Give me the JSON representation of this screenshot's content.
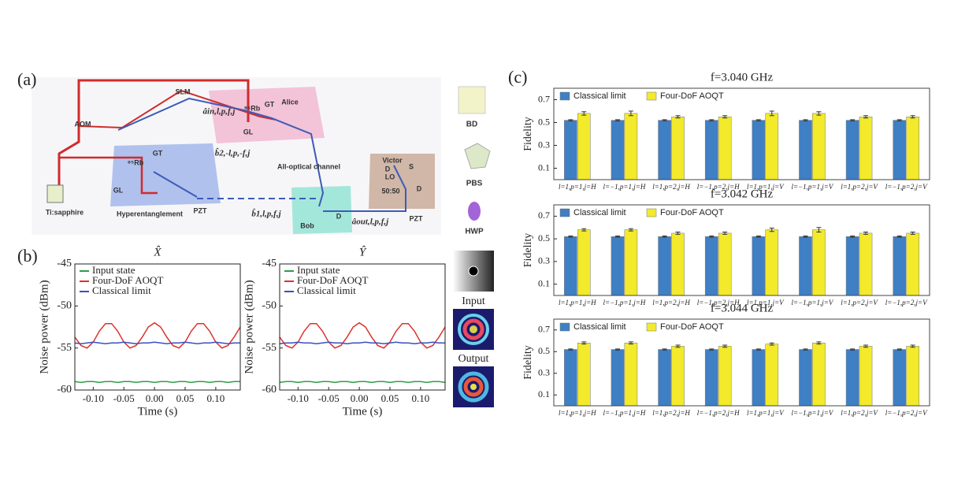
{
  "diagram": {
    "panel_label": "(a)",
    "labels": [
      "SLM",
      "AOM",
      "Alice",
      "GT",
      "⁸⁵Rb",
      "GL",
      "GT",
      "⁸⁵Rb",
      "GL",
      "Ti:sapphire",
      "Hyperentanglement",
      "PZT",
      "All-optical channel",
      "Bob",
      "Victor",
      "LO",
      "50:50",
      "D",
      "D",
      "D",
      "S",
      "PZT"
    ],
    "modes": [
      "âin,l,p,f,j",
      "b̂2,-l,p,-f,j",
      "b̂1,l,p,f,j",
      "âout,l,p,f,j"
    ],
    "legend": [
      "BD",
      "PBS",
      "HWP"
    ]
  },
  "panel_b": {
    "panel_label": "(b)",
    "images": [
      "Input",
      "Output"
    ]
  },
  "panel_c": {
    "panel_label": "(c)"
  },
  "chart_data": [
    {
      "type": "line",
      "title": "X̂",
      "xlabel": "Time (s)",
      "ylabel": "Noise power (dBm)",
      "x": [
        -0.13,
        -0.12,
        -0.11,
        -0.1,
        -0.09,
        -0.08,
        -0.07,
        -0.06,
        -0.05,
        -0.04,
        -0.03,
        -0.02,
        -0.01,
        0,
        0.01,
        0.02,
        0.03,
        0.04,
        0.05,
        0.06,
        0.07,
        0.08,
        0.09,
        0.1,
        0.11,
        0.12,
        0.13,
        0.14
      ],
      "xlim": [
        -0.13,
        0.14
      ],
      "ylim": [
        -60,
        -45
      ],
      "xticks": [
        {
          "value": -0.1,
          "label": "-0.10"
        },
        {
          "value": -0.05,
          "label": "-0.05"
        },
        {
          "value": 0,
          "label": "0.00"
        },
        {
          "value": 0.05,
          "label": "0.05"
        },
        {
          "value": 0.1,
          "label": "0.10"
        }
      ],
      "yticks": [
        -45,
        -50,
        -55,
        -60
      ],
      "series": [
        {
          "name": "Input state",
          "color": "#2e9e44",
          "values": [
            -59.0,
            -59.1,
            -59.0,
            -59.0,
            -59.1,
            -59.0,
            -59.0,
            -59.1,
            -59.0,
            -59.0,
            -59.1,
            -59.0,
            -59.0,
            -59.1,
            -59.0,
            -59.0,
            -59.1,
            -59.0,
            -59.0,
            -59.1,
            -59.0,
            -59.0,
            -59.1,
            -59.0,
            -59.0,
            -59.1,
            -59.0,
            -59.0
          ]
        },
        {
          "name": "Four-DoF AOQT",
          "color": "#d9342b",
          "values": [
            -53.7,
            -54.7,
            -55.0,
            -54.3,
            -53.0,
            -52.1,
            -52.1,
            -53.0,
            -54.3,
            -55.0,
            -54.7,
            -53.7,
            -52.5,
            -52.0,
            -52.5,
            -53.7,
            -54.7,
            -55.0,
            -54.3,
            -53.0,
            -52.1,
            -52.1,
            -53.0,
            -54.3,
            -55.0,
            -54.7,
            -53.7,
            -52.5
          ]
        },
        {
          "name": "Classical limit",
          "color": "#3b4fbf",
          "values": [
            -54.4,
            -54.5,
            -54.4,
            -54.3,
            -54.4,
            -54.5,
            -54.4,
            -54.4,
            -54.3,
            -54.4,
            -54.5,
            -54.4,
            -54.4,
            -54.3,
            -54.4,
            -54.5,
            -54.4,
            -54.4,
            -54.3,
            -54.4,
            -54.5,
            -54.4,
            -54.4,
            -54.3,
            -54.4,
            -54.5,
            -54.4,
            -54.4
          ]
        }
      ]
    },
    {
      "type": "line",
      "title": "Ŷ",
      "xlabel": "Time (s)",
      "ylabel": "Noise power (dBm)",
      "x": [
        -0.13,
        -0.12,
        -0.11,
        -0.1,
        -0.09,
        -0.08,
        -0.07,
        -0.06,
        -0.05,
        -0.04,
        -0.03,
        -0.02,
        -0.01,
        0,
        0.01,
        0.02,
        0.03,
        0.04,
        0.05,
        0.06,
        0.07,
        0.08,
        0.09,
        0.1,
        0.11,
        0.12,
        0.13,
        0.14
      ],
      "xlim": [
        -0.13,
        0.14
      ],
      "ylim": [
        -60,
        -45
      ],
      "xticks": [
        {
          "value": -0.1,
          "label": "-0.10"
        },
        {
          "value": -0.05,
          "label": "-0.05"
        },
        {
          "value": 0,
          "label": "0.00"
        },
        {
          "value": 0.05,
          "label": "0.05"
        },
        {
          "value": 0.1,
          "label": "0.10"
        }
      ],
      "yticks": [
        -45,
        -50,
        -55,
        -60
      ],
      "series": [
        {
          "name": "Input state",
          "color": "#2e9e44",
          "values": [
            -59.1,
            -59.0,
            -59.0,
            -59.1,
            -59.0,
            -59.0,
            -59.1,
            -59.0,
            -59.0,
            -59.1,
            -59.0,
            -59.0,
            -59.1,
            -59.0,
            -59.0,
            -59.1,
            -59.0,
            -59.0,
            -59.1,
            -59.0,
            -59.0,
            -59.1,
            -59.0,
            -59.0,
            -59.1,
            -59.0,
            -59.0,
            -59.1
          ]
        },
        {
          "name": "Four-DoF AOQT",
          "color": "#d9342b",
          "values": [
            -53.7,
            -54.7,
            -55.0,
            -54.3,
            -53.0,
            -52.1,
            -52.1,
            -53.0,
            -54.3,
            -55.0,
            -54.7,
            -53.7,
            -52.5,
            -52.0,
            -52.5,
            -53.7,
            -54.7,
            -55.0,
            -54.3,
            -53.0,
            -52.1,
            -52.1,
            -53.0,
            -54.3,
            -55.0,
            -54.7,
            -53.7,
            -52.5
          ]
        },
        {
          "name": "Classical limit",
          "color": "#3b4fbf",
          "values": [
            -54.5,
            -54.4,
            -54.4,
            -54.3,
            -54.4,
            -54.4,
            -54.5,
            -54.4,
            -54.3,
            -54.4,
            -54.4,
            -54.5,
            -54.4,
            -54.4,
            -54.3,
            -54.4,
            -54.4,
            -54.5,
            -54.4,
            -54.3,
            -54.4,
            -54.4,
            -54.5,
            -54.4,
            -54.4,
            -54.3,
            -54.4,
            -54.4
          ]
        }
      ]
    },
    {
      "type": "bar",
      "title": "f=3.040 GHz",
      "ylabel": "Fidelity",
      "categories": [
        "l=1,p=1,j=H",
        "l=−1,p=1,j=H",
        "l=1,p=2,j=H",
        "l=−1,p=2,j=H",
        "l=1,p=1,j=V",
        "l=−1,p=1,j=V",
        "l=1,p=2,j=V",
        "l=−1,p=2,j=V"
      ],
      "ylim": [
        0,
        0.8
      ],
      "yticks": [
        0.1,
        0.3,
        0.5,
        0.7
      ],
      "series": [
        {
          "name": "Classical limit",
          "color": "#3f7fc4",
          "values": [
            0.52,
            0.52,
            0.52,
            0.52,
            0.52,
            0.52,
            0.52,
            0.52
          ],
          "errors": [
            0.005,
            0.005,
            0.005,
            0.005,
            0.005,
            0.005,
            0.005,
            0.005
          ]
        },
        {
          "name": "Four-DoF AOQT",
          "color": "#f2ea2a",
          "values": [
            0.58,
            0.58,
            0.55,
            0.55,
            0.58,
            0.58,
            0.55,
            0.55
          ],
          "errors": [
            0.015,
            0.02,
            0.01,
            0.01,
            0.02,
            0.015,
            0.01,
            0.01
          ]
        }
      ]
    },
    {
      "type": "bar",
      "title": "f=3.042 GHz",
      "ylabel": "Fidelity",
      "categories": [
        "l=1,p=1,j=H",
        "l=−1,p=1,j=H",
        "l=1,p=2,j=H",
        "l=−1,p=2,j=H",
        "l=1,p=1,j=V",
        "l=−1,p=1,j=V",
        "l=1,p=2,j=V",
        "l=−1,p=2,j=V"
      ],
      "ylim": [
        0,
        0.8
      ],
      "yticks": [
        0.1,
        0.3,
        0.5,
        0.7
      ],
      "series": [
        {
          "name": "Classical limit",
          "color": "#3f7fc4",
          "values": [
            0.52,
            0.52,
            0.52,
            0.52,
            0.52,
            0.52,
            0.52,
            0.52
          ],
          "errors": [
            0.005,
            0.005,
            0.005,
            0.005,
            0.005,
            0.005,
            0.005,
            0.005
          ]
        },
        {
          "name": "Four-DoF AOQT",
          "color": "#f2ea2a",
          "values": [
            0.58,
            0.58,
            0.55,
            0.55,
            0.58,
            0.58,
            0.55,
            0.55
          ],
          "errors": [
            0.01,
            0.01,
            0.01,
            0.01,
            0.015,
            0.02,
            0.01,
            0.01
          ]
        }
      ]
    },
    {
      "type": "bar",
      "title": "f=3.044 GHz",
      "ylabel": "Fidelity",
      "categories": [
        "l=1,p=1,j=H",
        "l=−1,p=1,j=H",
        "l=1,p=2,j=H",
        "l=−1,p=2,j=H",
        "l=1,p=1,j=V",
        "l=−1,p=1,j=V",
        "l=1,p=2,j=V",
        "l=−1,p=2,j=V"
      ],
      "ylim": [
        0,
        0.8
      ],
      "yticks": [
        0.1,
        0.3,
        0.5,
        0.7
      ],
      "series": [
        {
          "name": "Classical limit",
          "color": "#3f7fc4",
          "values": [
            0.52,
            0.52,
            0.52,
            0.52,
            0.52,
            0.52,
            0.52,
            0.52
          ],
          "errors": [
            0.005,
            0.005,
            0.005,
            0.005,
            0.005,
            0.005,
            0.005,
            0.005
          ]
        },
        {
          "name": "Four-DoF AOQT",
          "color": "#f2ea2a",
          "values": [
            0.58,
            0.58,
            0.55,
            0.55,
            0.57,
            0.58,
            0.55,
            0.55
          ],
          "errors": [
            0.01,
            0.01,
            0.01,
            0.01,
            0.01,
            0.01,
            0.01,
            0.01
          ]
        }
      ]
    }
  ]
}
